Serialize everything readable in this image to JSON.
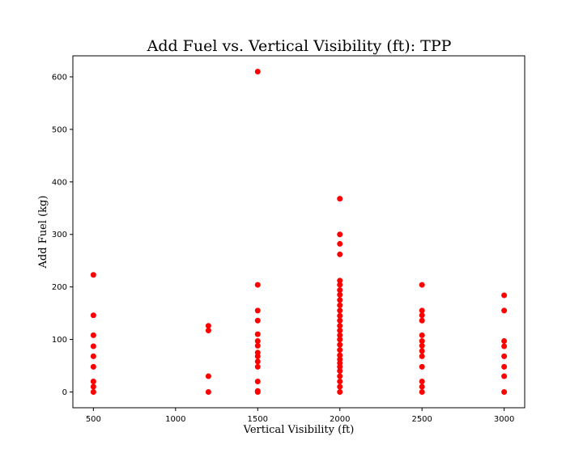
{
  "chart_data": {
    "type": "scatter",
    "title": "Add Fuel vs. Vertical Visibility (ft): TPP",
    "xlabel": "Vertical Visibility (ft)",
    "ylabel": "Add Fuel (kg)",
    "xlim": [
      375,
      3125
    ],
    "ylim": [
      -30,
      640
    ],
    "xticks": [
      500,
      1000,
      1500,
      2000,
      2500,
      3000
    ],
    "yticks": [
      0,
      100,
      200,
      300,
      400,
      500,
      600
    ],
    "grid": false,
    "marker_color": "#ff0000",
    "series": [
      {
        "points": [
          [
            500,
            223
          ],
          [
            500,
            146
          ],
          [
            500,
            108
          ],
          [
            500,
            87
          ],
          [
            500,
            68
          ],
          [
            500,
            48
          ],
          [
            500,
            20
          ],
          [
            500,
            10
          ],
          [
            500,
            0
          ],
          [
            1200,
            126
          ],
          [
            1200,
            117
          ],
          [
            1200,
            30
          ],
          [
            1200,
            0
          ],
          [
            1500,
            610
          ],
          [
            1500,
            204
          ],
          [
            1500,
            155
          ],
          [
            1500,
            136
          ],
          [
            1500,
            110
          ],
          [
            1500,
            97
          ],
          [
            1500,
            88
          ],
          [
            1500,
            75
          ],
          [
            1500,
            68
          ],
          [
            1500,
            58
          ],
          [
            1500,
            48
          ],
          [
            1500,
            20
          ],
          [
            1500,
            2
          ],
          [
            1500,
            0
          ],
          [
            2000,
            368
          ],
          [
            2000,
            300
          ],
          [
            2000,
            282
          ],
          [
            2000,
            262
          ],
          [
            2000,
            212
          ],
          [
            2000,
            204
          ],
          [
            2000,
            194
          ],
          [
            2000,
            185
          ],
          [
            2000,
            175
          ],
          [
            2000,
            165
          ],
          [
            2000,
            155
          ],
          [
            2000,
            145
          ],
          [
            2000,
            136
          ],
          [
            2000,
            126
          ],
          [
            2000,
            117
          ],
          [
            2000,
            108
          ],
          [
            2000,
            100
          ],
          [
            2000,
            90
          ],
          [
            2000,
            80
          ],
          [
            2000,
            70
          ],
          [
            2000,
            62
          ],
          [
            2000,
            55
          ],
          [
            2000,
            48
          ],
          [
            2000,
            40
          ],
          [
            2000,
            30
          ],
          [
            2000,
            20
          ],
          [
            2000,
            10
          ],
          [
            2000,
            0
          ],
          [
            2500,
            204
          ],
          [
            2500,
            155
          ],
          [
            2500,
            146
          ],
          [
            2500,
            136
          ],
          [
            2500,
            108
          ],
          [
            2500,
            97
          ],
          [
            2500,
            88
          ],
          [
            2500,
            78
          ],
          [
            2500,
            68
          ],
          [
            2500,
            48
          ],
          [
            2500,
            20
          ],
          [
            2500,
            10
          ],
          [
            2500,
            0
          ],
          [
            3000,
            184
          ],
          [
            3000,
            155
          ],
          [
            3000,
            97
          ],
          [
            3000,
            87
          ],
          [
            3000,
            68
          ],
          [
            3000,
            48
          ],
          [
            3000,
            30
          ],
          [
            3000,
            0
          ]
        ]
      }
    ]
  }
}
